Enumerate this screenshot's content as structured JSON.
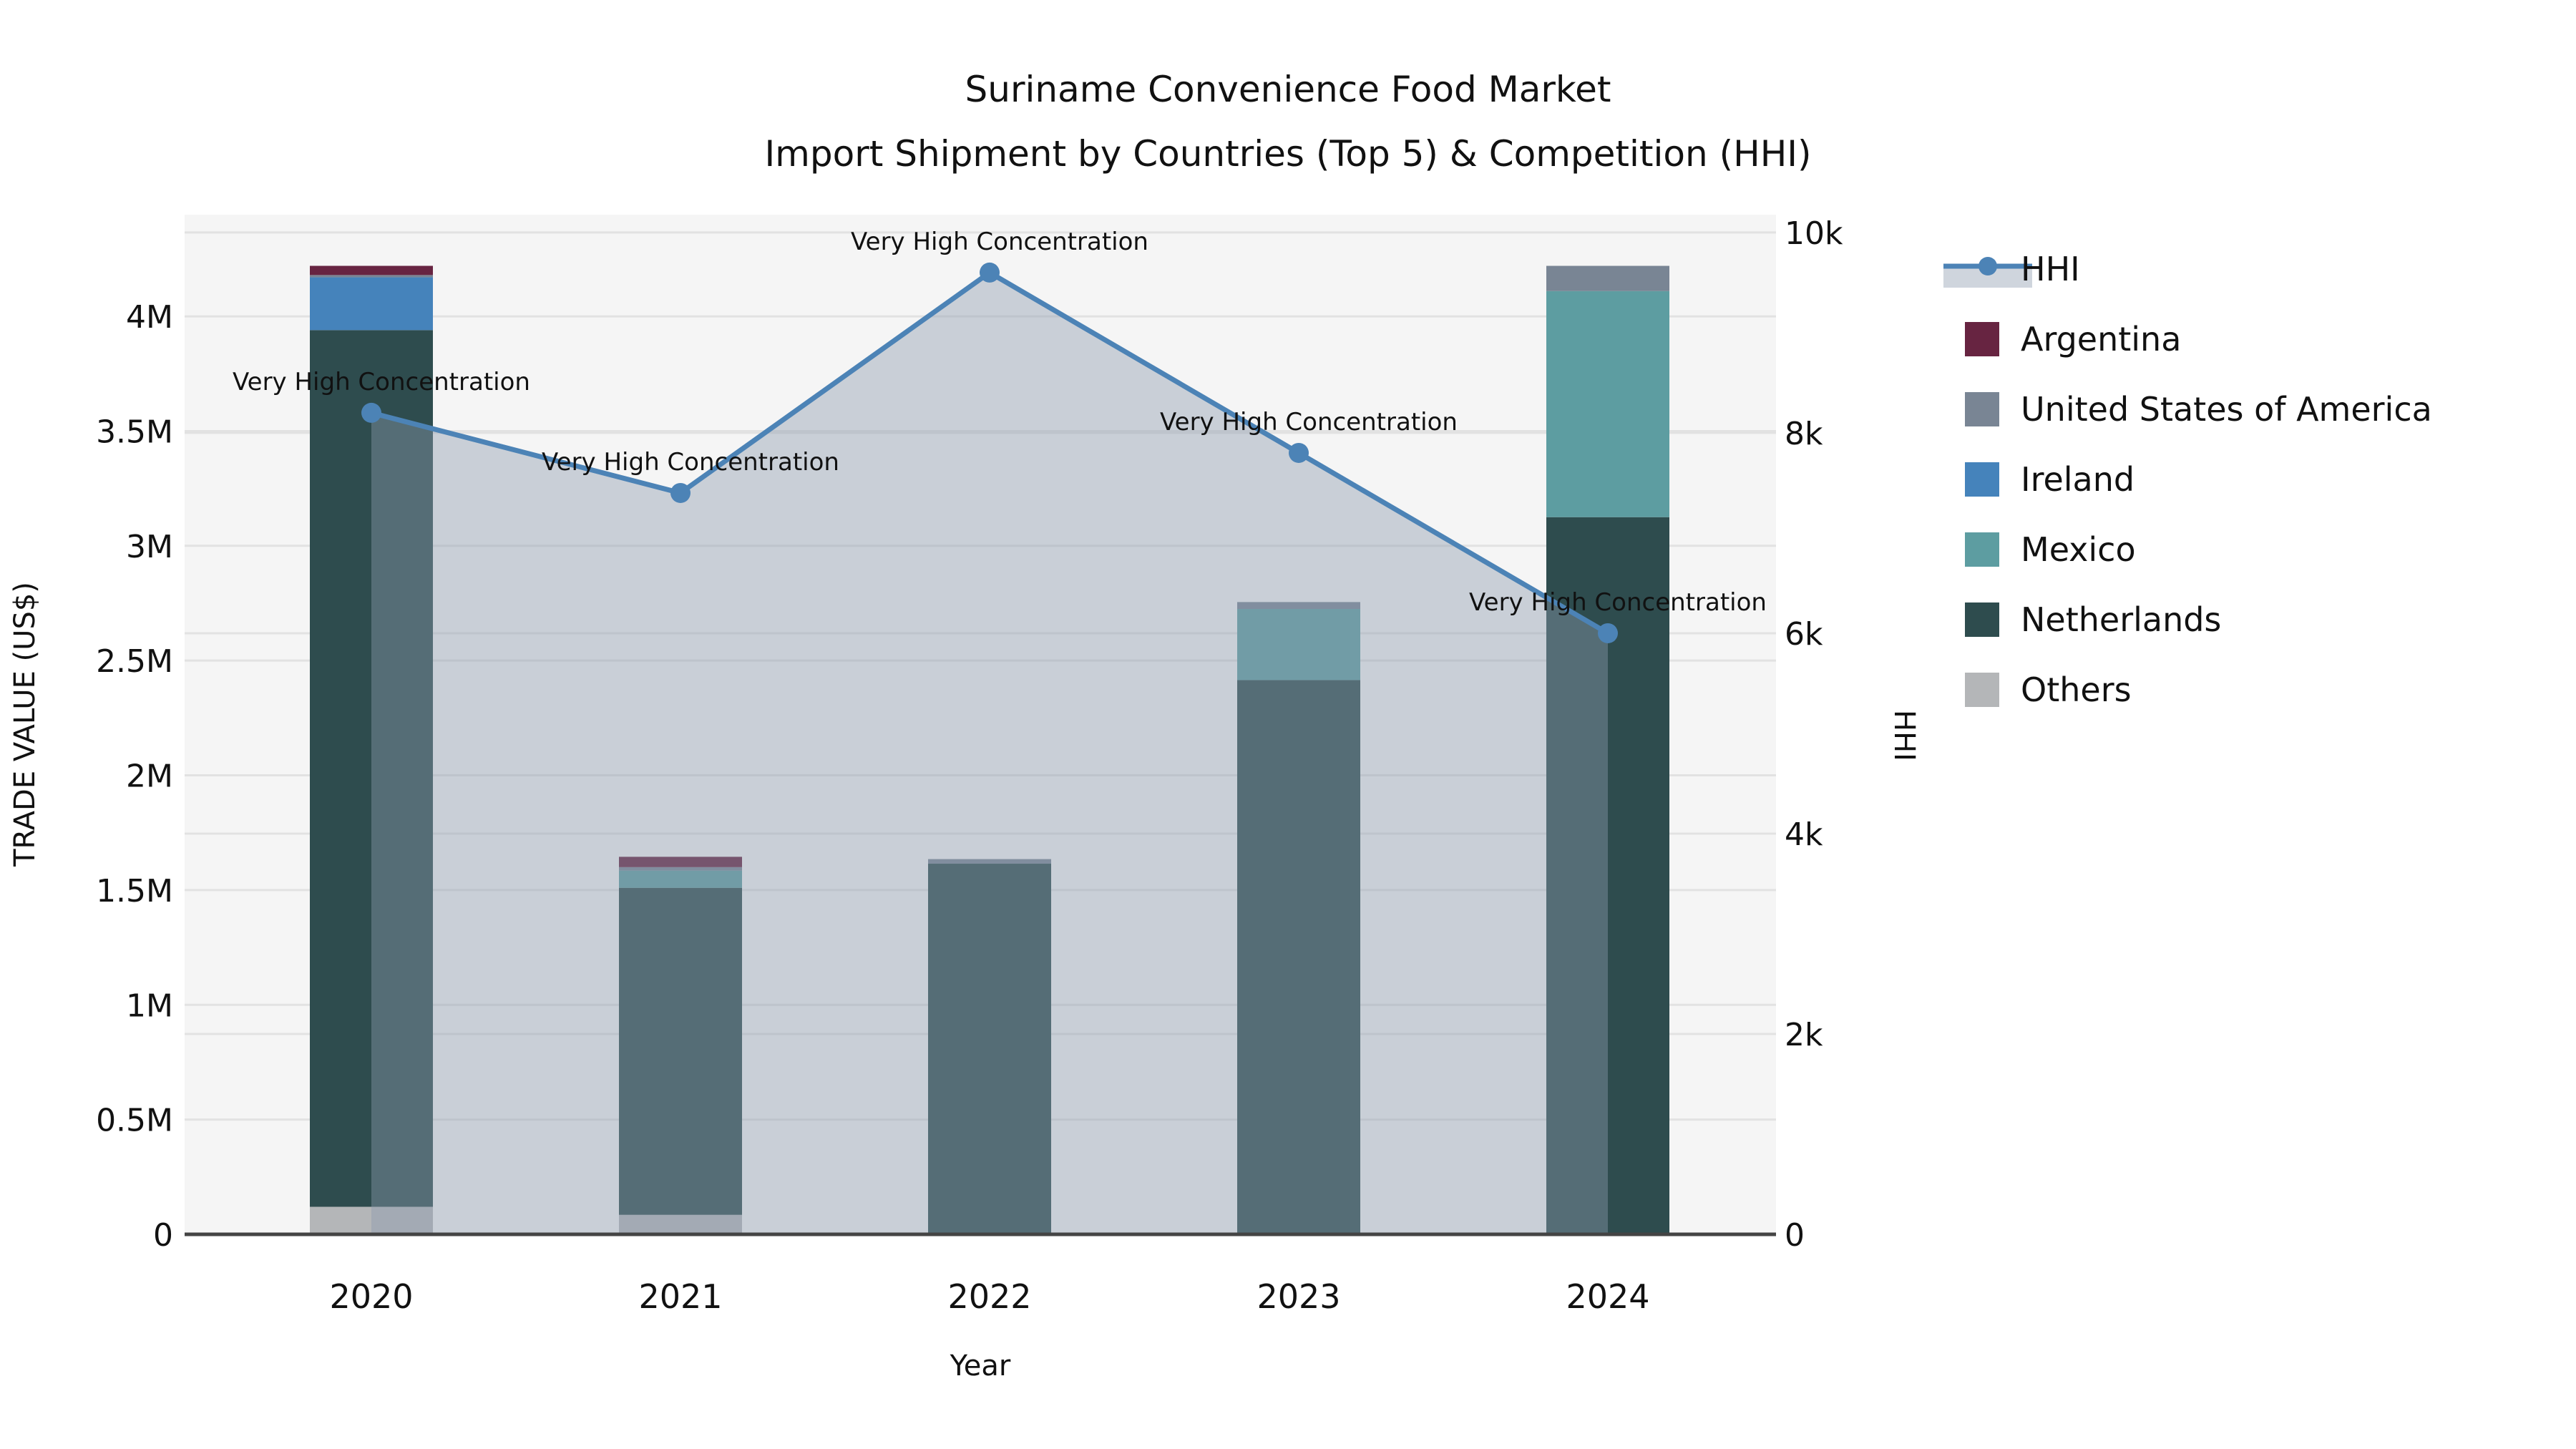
{
  "title": {
    "line1": "Suriname Convenience Food Market",
    "line2": "Import Shipment by Countries (Top 5) & Competition (HHI)"
  },
  "xlabel": "Year",
  "left_axis": {
    "label": "TRADE VALUE (US$)",
    "tick_values": [
      0,
      500000,
      1000000,
      1500000,
      2000000,
      2500000,
      3000000,
      3500000,
      4000000
    ],
    "tick_labels": [
      "0",
      "0.5M",
      "1M",
      "1.5M",
      "2M",
      "2.5M",
      "3M",
      "3.5M",
      "4M"
    ],
    "max": 4443000
  },
  "right_axis": {
    "label": "HHI",
    "tick_values": [
      0,
      2000,
      4000,
      6000,
      8000,
      10000
    ],
    "tick_labels": [
      "0",
      "2k",
      "4k",
      "6k",
      "8k",
      "10k"
    ],
    "max": 10178
  },
  "colors": {
    "plot_bg": "#f5f5f5",
    "grid": "#e2e2e2",
    "axis_line": "#444444",
    "hhi_line": "#4c83b6",
    "hhi_fill": "rgba(140,155,175,0.42)",
    "annotation_text": "#111111"
  },
  "chart_data": {
    "type": "bar+line",
    "stacked": true,
    "categories": [
      "2020",
      "2021",
      "2022",
      "2023",
      "2024"
    ],
    "bar_series": [
      {
        "name": "Argentina",
        "color": "#672441",
        "values": [
          40000,
          45000,
          0,
          0,
          0
        ]
      },
      {
        "name": "United States of America",
        "color": "#798594",
        "values": [
          10000,
          15000,
          20000,
          30000,
          110000
        ]
      },
      {
        "name": "Ireland",
        "color": "#4583bb",
        "values": [
          230000,
          0,
          0,
          0,
          0
        ]
      },
      {
        "name": "Mexico",
        "color": "#5d9da1",
        "values": [
          0,
          75000,
          0,
          310000,
          985000
        ]
      },
      {
        "name": "Netherlands",
        "color": "#2e4c4e",
        "values": [
          3820000,
          1425000,
          1615000,
          2415000,
          3125000
        ]
      },
      {
        "name": "Others",
        "color": "#b4b6b8",
        "values": [
          120000,
          85000,
          0,
          0,
          0
        ]
      }
    ],
    "stack_order_bottom_to_top": [
      "Others",
      "Netherlands",
      "Mexico",
      "Ireland",
      "United States of America",
      "Argentina"
    ],
    "line_series": {
      "name": "HHI",
      "values": [
        8200,
        7400,
        9600,
        7800,
        6000
      ]
    },
    "point_annotations": [
      "Very High Concentration",
      "Very High Concentration",
      "Very High Concentration",
      "Very High Concentration",
      "Very High Concentration"
    ],
    "title": "Suriname Convenience Food Market Import Shipment by Countries (Top 5) & Competition (HHI)",
    "ylabel_left": "TRADE VALUE (US$)",
    "ylabel_right": "HHI",
    "ylim_left": [
      0,
      4443000
    ],
    "ylim_right": [
      0,
      10178
    ],
    "grid": true,
    "legend_position": "right"
  },
  "legend": {
    "items": [
      {
        "label": "HHI",
        "type": "line"
      },
      {
        "label": "Argentina",
        "type": "patch",
        "color": "#672441"
      },
      {
        "label": "United States of America",
        "type": "patch",
        "color": "#798594"
      },
      {
        "label": "Ireland",
        "type": "patch",
        "color": "#4583bb"
      },
      {
        "label": "Mexico",
        "type": "patch",
        "color": "#5d9da1"
      },
      {
        "label": "Netherlands",
        "type": "patch",
        "color": "#2e4c4e"
      },
      {
        "label": "Others",
        "type": "patch",
        "color": "#b4b6b8"
      }
    ]
  }
}
